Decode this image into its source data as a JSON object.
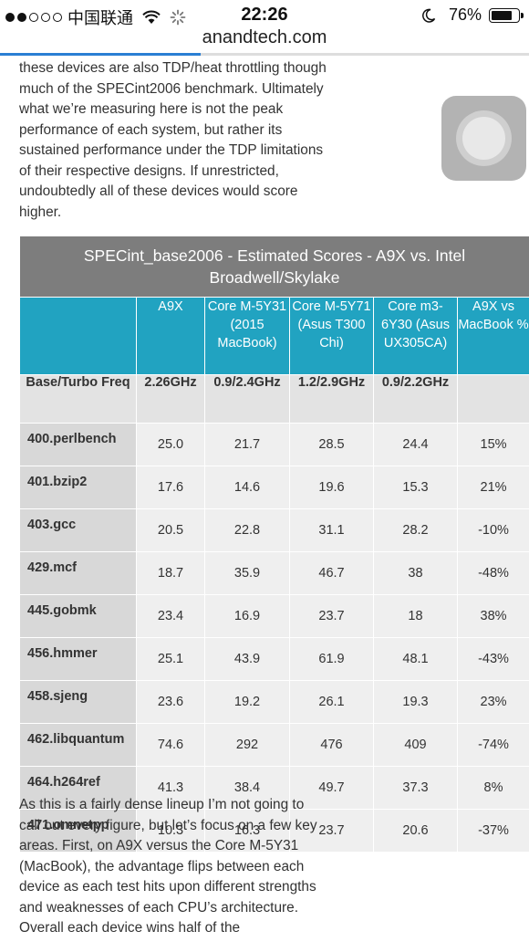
{
  "status": {
    "carrier": "中国联通",
    "time": "22:26",
    "battery": "76%",
    "signal_dots_filled": 2,
    "signal_dots_total": 5
  },
  "browser": {
    "url": "anandtech.com",
    "load_progress": 0.38
  },
  "article_top": "these devices are also TDP/heat throttling though much of the SPECint2006 benchmark. Ultimately what we’re measuring here is not the peak performance of each system, but rather its sustained performance under the TDP limitations of their respective designs. If unrestricted, undoubtedly all of these devices would score higher.",
  "table": {
    "title": "SPECint_base2006 - Estimated Scores - A9X vs. Intel Broadwell/Skylake",
    "headers": [
      "",
      "A9X",
      "Core M-5Y31 (2015 MacBook)",
      "Core M-5Y71 (Asus T300 Chi)",
      "Core m3-6Y30 (Asus UX305CA)",
      "A9X vs MacBook %"
    ],
    "freq_row": [
      "Base/Turbo Freq",
      "2.26GHz",
      "0.9/2.4GHz",
      "1.2/2.9GHz",
      "0.9/2.2GHz",
      ""
    ],
    "rows": [
      [
        "400.perlbench",
        "25.0",
        "21.7",
        "28.5",
        "24.4",
        "15%"
      ],
      [
        "401.bzip2",
        "17.6",
        "14.6",
        "19.6",
        "15.3",
        "21%"
      ],
      [
        "403.gcc",
        "20.5",
        "22.8",
        "31.1",
        "28.2",
        "-10%"
      ],
      [
        "429.mcf",
        "18.7",
        "35.9",
        "46.7",
        "38",
        "-48%"
      ],
      [
        "445.gobmk",
        "23.4",
        "16.9",
        "23.7",
        "18",
        "38%"
      ],
      [
        "456.hmmer",
        "25.1",
        "43.9",
        "61.9",
        "48.1",
        "-43%"
      ],
      [
        "458.sjeng",
        "23.6",
        "19.2",
        "26.1",
        "19.3",
        "23%"
      ],
      [
        "462.libquantum",
        "74.6",
        "292",
        "476",
        "409",
        "-74%"
      ],
      [
        "464.h264ref",
        "41.3",
        "38.4",
        "49.7",
        "37.3",
        "8%"
      ],
      [
        "471.omnetpp",
        "10.3",
        "16.3",
        "23.7",
        "20.6",
        "-37%"
      ]
    ]
  },
  "article_bottom": "As this is a fairly dense lineup I’m not going to call out every figure, but let’s focus on a few key areas. First, on A9X versus the Core M-5Y31 (MacBook), the advantage flips between each device as each test hits upon different strengths and weaknesses of each CPU’s architecture. Overall each device wins half of the",
  "colors": {
    "title_bg": "#7d7d7d",
    "header_bg": "#21a3c1",
    "freq_bg": "#e3e3e3",
    "label_bg": "#d8d8d8",
    "cell_bg": "#efefef"
  }
}
